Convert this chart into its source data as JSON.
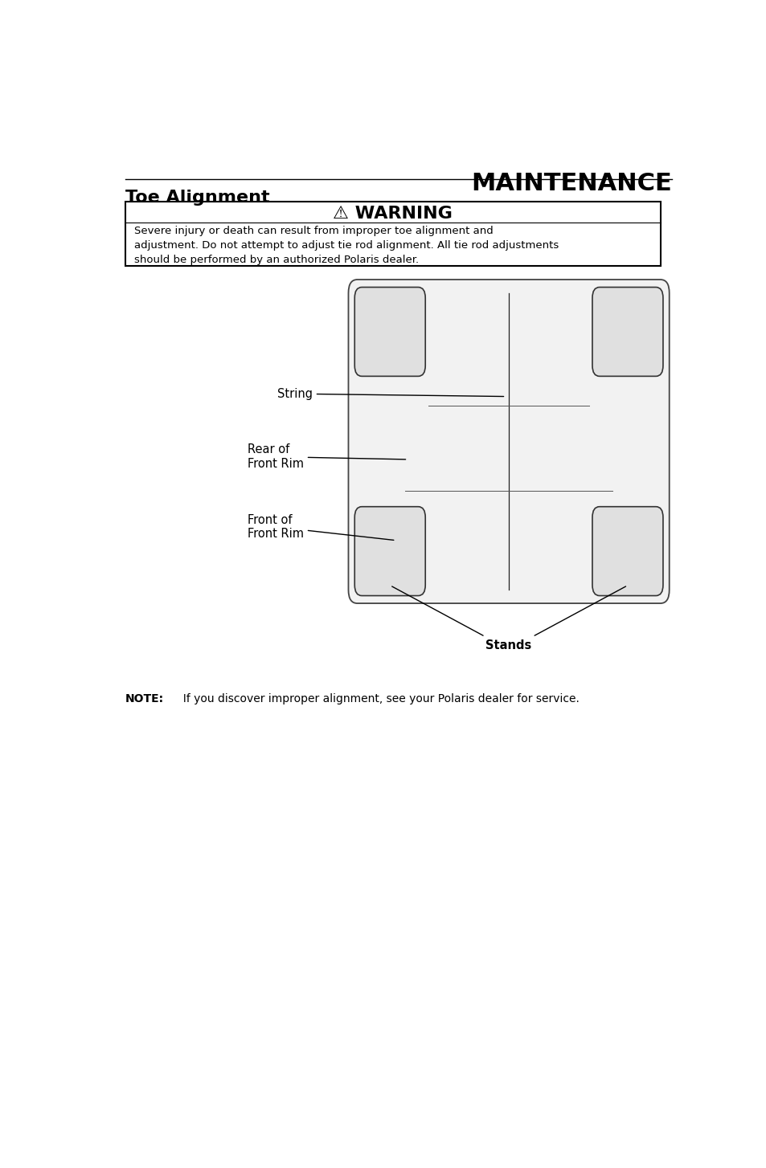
{
  "page_width": 9.54,
  "page_height": 14.54,
  "bg_color": "#ffffff",
  "maintenance_title": "MAINTENANCE",
  "maintenance_fontsize": 22,
  "section_title": "Toe Alignment",
  "section_fontsize": 16,
  "warning_title": "⚠ WARNING",
  "warning_title_fontsize": 16,
  "warning_text": "Severe injury or death can result from improper toe alignment and\nadjustment. Do not attempt to adjust tie rod alignment. All tie rod adjustments\nshould be performed by an authorized Polaris dealer.",
  "warning_text_fontsize": 9.5,
  "note_bold": "NOTE:",
  "note_rest": "  If you discover improper alignment, see your Polaris dealer for service.",
  "note_fontsize": 10,
  "label_string": "String",
  "label_rear": "Rear of\nFront Rim",
  "label_front": "Front of\nFront Rim",
  "label_stands": "Stands"
}
